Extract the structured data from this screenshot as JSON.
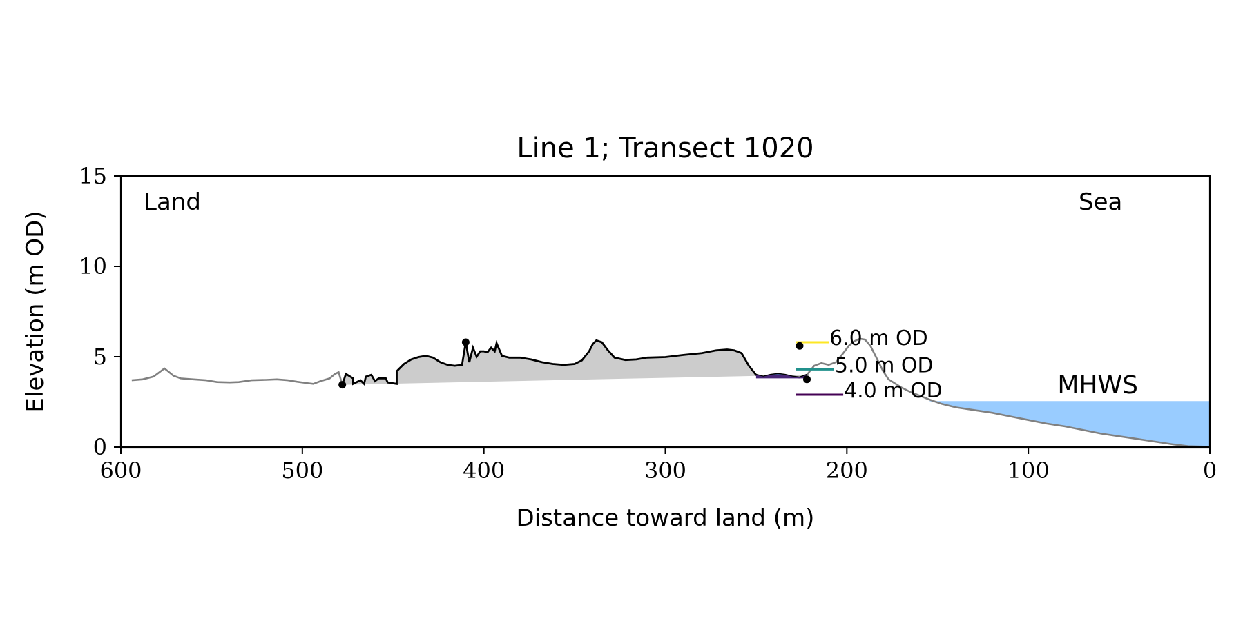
{
  "chart_data": {
    "type": "area",
    "title": "Line 1; Transect 1020",
    "xlabel": "Distance toward land (m)",
    "ylabel": "Elevation (m OD)",
    "xlim": [
      600,
      0
    ],
    "ylim": [
      0,
      15
    ],
    "x_ticks": [
      600,
      500,
      400,
      300,
      200,
      100,
      0
    ],
    "y_ticks": [
      0,
      5,
      10,
      15
    ],
    "grid": false,
    "annotations": {
      "land": "Land",
      "sea": "Sea",
      "mhws": "MHWS",
      "levels": [
        "6.0 m OD",
        "5.0 m OD",
        "4.0 m OD"
      ]
    },
    "mhws_level": 2.55,
    "levels": [
      {
        "label": "6.0 m OD",
        "value": 6.0,
        "color": "#fde725"
      },
      {
        "label": "5.0 m OD",
        "value": 5.0,
        "color": "#21918c"
      },
      {
        "label": "4.0 m OD",
        "value": 4.0,
        "color": "#440154"
      }
    ],
    "colors": {
      "profile": "#808080",
      "dune_line": "#000000",
      "dune_fill": "#cccccc",
      "sea": "#99ccff",
      "mhws_text": "#6699cc",
      "level_fill_high": "#2aa785",
      "level_fill_mid": "#3b528b",
      "level_fill_low": "#482677"
    },
    "dune_start_x": 478,
    "dune_end_x": 222,
    "markers": [
      {
        "x": 478,
        "y": 3.45
      },
      {
        "x": 410,
        "y": 5.8
      },
      {
        "x": 226,
        "y": 5.6
      },
      {
        "x": 222,
        "y": 3.75
      }
    ],
    "profile": [
      [
        594,
        3.7
      ],
      [
        588,
        3.75
      ],
      [
        582,
        3.9
      ],
      [
        578,
        4.2
      ],
      [
        576,
        4.35
      ],
      [
        574,
        4.2
      ],
      [
        571,
        3.95
      ],
      [
        567,
        3.8
      ],
      [
        560,
        3.75
      ],
      [
        553,
        3.7
      ],
      [
        547,
        3.6
      ],
      [
        540,
        3.58
      ],
      [
        535,
        3.6
      ],
      [
        528,
        3.7
      ],
      [
        520,
        3.72
      ],
      [
        514,
        3.75
      ],
      [
        508,
        3.7
      ],
      [
        503,
        3.62
      ],
      [
        498,
        3.55
      ],
      [
        494,
        3.5
      ],
      [
        490,
        3.65
      ],
      [
        485,
        3.8
      ],
      [
        482,
        4.05
      ],
      [
        480,
        4.15
      ],
      [
        476,
        4.05
      ],
      [
        472,
        3.8
      ],
      [
        468,
        3.7
      ],
      [
        465,
        3.9
      ],
      [
        462,
        4.0
      ],
      [
        458,
        3.8
      ],
      [
        453,
        3.58
      ],
      [
        448,
        3.5
      ],
      [
        478,
        3.45
      ],
      [
        472,
        3.5
      ],
      [
        466,
        3.5
      ],
      [
        460,
        3.65
      ],
      [
        454,
        3.8
      ],
      [
        448,
        4.2
      ],
      [
        444,
        4.6
      ],
      [
        440,
        4.85
      ],
      [
        436,
        4.98
      ],
      [
        432,
        5.05
      ],
      [
        428,
        4.95
      ],
      [
        424,
        4.7
      ],
      [
        420,
        4.55
      ],
      [
        416,
        4.5
      ],
      [
        412,
        4.55
      ],
      [
        408,
        4.7
      ],
      [
        404,
        5.0
      ],
      [
        400,
        5.3
      ],
      [
        396,
        5.5
      ],
      [
        393,
        5.75
      ],
      [
        410,
        5.8
      ],
      [
        406,
        5.5
      ],
      [
        402,
        5.3
      ],
      [
        398,
        5.25
      ],
      [
        394,
        5.3
      ],
      [
        390,
        5.05
      ],
      [
        386,
        4.95
      ],
      [
        380,
        4.95
      ],
      [
        374,
        4.85
      ],
      [
        368,
        4.7
      ],
      [
        362,
        4.6
      ],
      [
        356,
        4.55
      ],
      [
        350,
        4.6
      ],
      [
        346,
        4.8
      ],
      [
        342,
        5.3
      ],
      [
        340,
        5.7
      ],
      [
        338,
        5.9
      ],
      [
        335,
        5.8
      ],
      [
        332,
        5.4
      ],
      [
        328,
        4.95
      ],
      [
        322,
        4.82
      ],
      [
        316,
        4.85
      ],
      [
        310,
        4.95
      ],
      [
        300,
        4.98
      ],
      [
        290,
        5.1
      ],
      [
        280,
        5.2
      ],
      [
        272,
        5.35
      ],
      [
        266,
        5.4
      ],
      [
        262,
        5.35
      ],
      [
        258,
        5.2
      ],
      [
        254,
        4.5
      ],
      [
        250,
        4.0
      ],
      [
        246,
        3.9
      ],
      [
        242,
        4.0
      ],
      [
        238,
        4.05
      ],
      [
        234,
        4.0
      ],
      [
        230,
        3.9
      ],
      [
        226,
        3.85
      ],
      [
        222,
        4.0
      ],
      [
        218,
        4.5
      ],
      [
        214,
        4.65
      ],
      [
        210,
        4.55
      ],
      [
        206,
        4.7
      ],
      [
        202,
        5.2
      ],
      [
        199,
        5.6
      ],
      [
        196,
        5.85
      ],
      [
        193,
        6.0
      ],
      [
        190,
        5.95
      ],
      [
        187,
        5.6
      ],
      [
        184,
        5.0
      ],
      [
        180,
        4.2
      ],
      [
        177,
        3.75
      ],
      [
        170,
        3.3
      ],
      [
        165,
        3.05
      ],
      [
        160,
        2.85
      ],
      [
        155,
        2.65
      ],
      [
        148,
        2.4
      ],
      [
        140,
        2.2
      ],
      [
        130,
        2.05
      ],
      [
        120,
        1.9
      ],
      [
        110,
        1.7
      ],
      [
        100,
        1.5
      ],
      [
        90,
        1.3
      ],
      [
        80,
        1.15
      ],
      [
        70,
        0.95
      ],
      [
        60,
        0.75
      ],
      [
        50,
        0.6
      ],
      [
        40,
        0.45
      ],
      [
        30,
        0.3
      ],
      [
        20,
        0.15
      ],
      [
        12,
        0.05
      ],
      [
        0,
        0.02
      ]
    ]
  }
}
